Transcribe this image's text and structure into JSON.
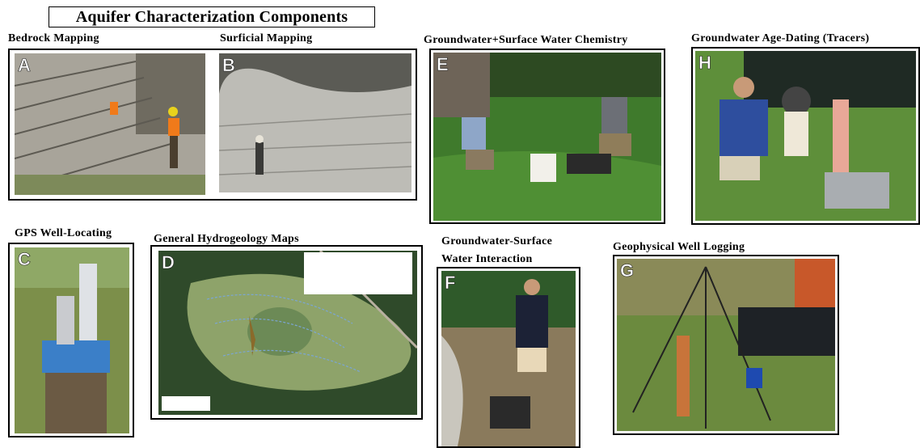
{
  "title": "Aquifer Characterization Components",
  "panels": [
    {
      "heading": [
        "Bedrock Mapping"
      ],
      "letter": "A"
    },
    {
      "heading": [
        "Surficial Mapping"
      ],
      "letter": "B"
    },
    {
      "heading": [
        "Groundwater+Surface Water Chemistry"
      ],
      "letter": "E"
    },
    {
      "heading": [
        "Groundwater Age-Dating (Tracers)"
      ],
      "letter": "H"
    },
    {
      "heading": [
        "GPS Well-Locating"
      ],
      "letter": "C"
    },
    {
      "heading": [
        "General Hydrogeology Maps"
      ],
      "letter": "D"
    },
    {
      "heading": [
        "Groundwater-Surface",
        "Water Interaction"
      ],
      "letter": "F"
    },
    {
      "heading": [
        "Geophysical Well Logging"
      ],
      "letter": "G"
    }
  ]
}
